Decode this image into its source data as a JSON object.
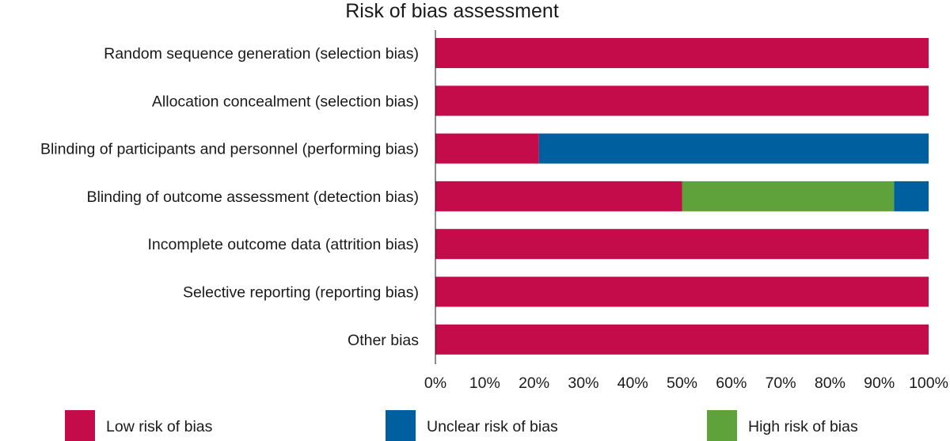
{
  "chart_data": {
    "type": "bar",
    "orientation": "horizontal",
    "stacked": true,
    "title": "Risk of bias assessment",
    "xlabel": "",
    "ylabel": "",
    "xlim": [
      0,
      100
    ],
    "grid": false,
    "legend_position": "bottom",
    "categories": [
      "Random sequence generation (selection bias)",
      "Allocation concealment (selection bias)",
      "Blinding of participants and personnel (performing bias)",
      "Blinding of outcome assessment (detection bias)",
      "Incomplete outcome data (attrition bias)",
      "Selective reporting (reporting bias)",
      "Other bias"
    ],
    "series": [
      {
        "name": "Low risk of bias",
        "color": "#c40c4a",
        "values": [
          100,
          100,
          21,
          50,
          100,
          100,
          100
        ]
      },
      {
        "name": "High risk of bias",
        "color": "#5fa23c",
        "values": [
          0,
          0,
          0,
          43,
          0,
          0,
          0
        ]
      },
      {
        "name": "Unclear risk of bias",
        "color": "#005f9e",
        "values": [
          0,
          0,
          79,
          7,
          0,
          0,
          0
        ]
      }
    ],
    "x_ticks": [
      "0%",
      "10%",
      "20%",
      "30%",
      "40%",
      "50%",
      "60%",
      "70%",
      "80%",
      "90%",
      "100%"
    ],
    "legend": [
      {
        "label": "Low risk of bias",
        "color": "#c40c4a"
      },
      {
        "label": "Unclear risk of bias",
        "color": "#005f9e"
      },
      {
        "label": "High risk of bias",
        "color": "#5fa23c"
      }
    ]
  }
}
